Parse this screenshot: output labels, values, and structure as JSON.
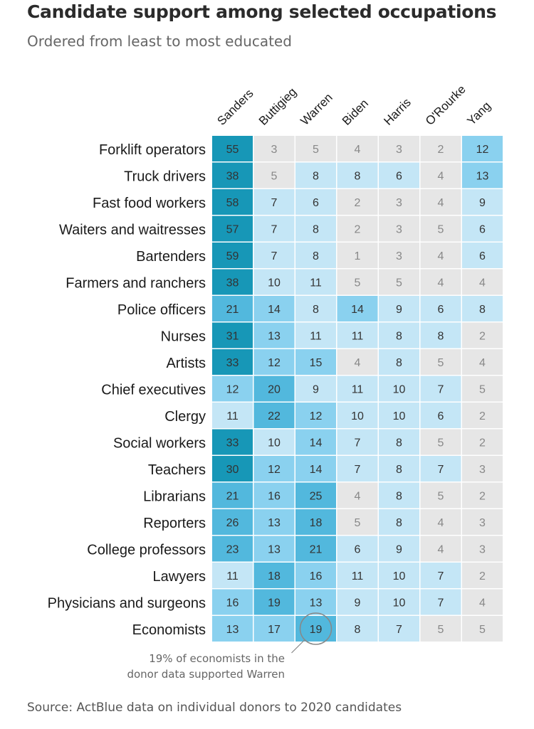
{
  "title": "Candidate support among selected occupations",
  "subtitle": "Ordered from least to most educated",
  "source": "Source: ActBlue data on individual donors to 2020 candidates",
  "colors": {
    "low": "#e6e6e6",
    "mid": "#c4e6f6",
    "high": "#8ad1ef",
    "higher": "#52b8dd",
    "top": "#1797b7",
    "text_dark": "#333333",
    "text_light": "#888888",
    "highlight_circle": "#888888"
  },
  "annotation": {
    "line1": "19% of economists in the",
    "line2": "donor data supported Warren",
    "row": "Economists",
    "column": "Warren"
  },
  "chart_data": {
    "type": "heatmap",
    "title": "Candidate support among selected occupations",
    "subtitle": "Ordered from least to most educated",
    "unit": "% of donors",
    "columns": [
      "Sanders",
      "Buttigieg",
      "Warren",
      "Biden",
      "Harris",
      "O'Rourke",
      "Yang"
    ],
    "rows": [
      {
        "label": "Forklift operators",
        "values": [
          55,
          3,
          5,
          4,
          3,
          2,
          12
        ]
      },
      {
        "label": "Truck drivers",
        "values": [
          38,
          5,
          8,
          8,
          6,
          4,
          13
        ]
      },
      {
        "label": "Fast food workers",
        "values": [
          58,
          7,
          6,
          2,
          3,
          4,
          9
        ]
      },
      {
        "label": "Waiters and waitresses",
        "values": [
          57,
          7,
          8,
          2,
          3,
          5,
          6
        ]
      },
      {
        "label": "Bartenders",
        "values": [
          59,
          7,
          8,
          1,
          3,
          4,
          6
        ]
      },
      {
        "label": "Farmers and ranchers",
        "values": [
          38,
          10,
          11,
          5,
          5,
          4,
          4
        ]
      },
      {
        "label": "Police officers",
        "values": [
          21,
          14,
          8,
          14,
          9,
          6,
          8
        ]
      },
      {
        "label": "Nurses",
        "values": [
          31,
          13,
          11,
          11,
          8,
          8,
          2
        ]
      },
      {
        "label": "Artists",
        "values": [
          33,
          12,
          15,
          4,
          8,
          5,
          4
        ]
      },
      {
        "label": "Chief executives",
        "values": [
          12,
          20,
          9,
          11,
          10,
          7,
          5
        ]
      },
      {
        "label": "Clergy",
        "values": [
          11,
          22,
          12,
          10,
          10,
          6,
          2
        ]
      },
      {
        "label": "Social workers",
        "values": [
          33,
          10,
          14,
          7,
          8,
          5,
          2
        ]
      },
      {
        "label": "Teachers",
        "values": [
          30,
          12,
          14,
          7,
          8,
          7,
          3
        ]
      },
      {
        "label": "Librarians",
        "values": [
          21,
          16,
          25,
          4,
          8,
          5,
          2
        ]
      },
      {
        "label": "Reporters",
        "values": [
          26,
          13,
          18,
          5,
          8,
          4,
          3
        ]
      },
      {
        "label": "College professors",
        "values": [
          23,
          13,
          21,
          6,
          9,
          4,
          3
        ]
      },
      {
        "label": "Lawyers",
        "values": [
          11,
          18,
          16,
          11,
          10,
          7,
          2
        ]
      },
      {
        "label": "Physicians and surgeons",
        "values": [
          16,
          19,
          13,
          9,
          10,
          7,
          4
        ]
      },
      {
        "label": "Economists",
        "values": [
          13,
          17,
          19,
          8,
          7,
          5,
          5
        ]
      }
    ]
  }
}
